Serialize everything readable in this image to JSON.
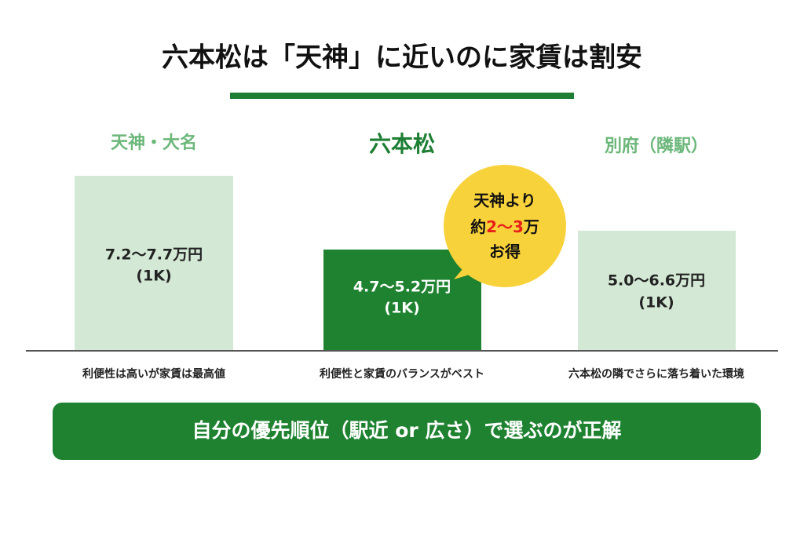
{
  "header": {
    "title": "六本松は「天神」に近いのに家賃は割安"
  },
  "columns": [
    {
      "name": "天神・大名",
      "price": "7.2〜7.7万円",
      "unit": "(1K)",
      "note": "利便性は高いが家賃は最高値"
    },
    {
      "name": "六本松",
      "price": "4.7〜5.2万円",
      "unit": "(1K)",
      "note": "利便性と家賃のバランスがベスト"
    },
    {
      "name": "別府（隣駅）",
      "price": "5.0〜6.6万円",
      "unit": "(1K)",
      "note": "六本松の隣でさらに落ち着いた環境"
    }
  ],
  "bubble": {
    "line1": "天神より",
    "line2": [
      "約",
      "2",
      "〜",
      "3",
      "万"
    ],
    "line3": "お得"
  },
  "conclusion": "自分の優先順位（駅近 or 広さ）で選ぶのが正解"
}
